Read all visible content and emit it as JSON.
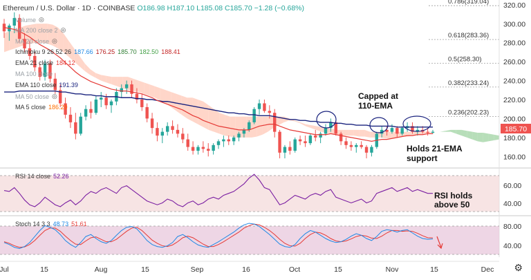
{
  "header": {
    "symbol_title": "Ethereum / U.S. Dollar · 1D · COINBASE",
    "ohlc": "O186.98 H187.10 L185.08 C185.70 −1.28 (−0.68%)"
  },
  "legend": {
    "volume": "Volume",
    "ma200": "MA 200 close 2",
    "ma20": "MA 20 close",
    "ichimoku_label": "Ichimoku 9 26 52 26",
    "ichimoku_values": [
      "187.66",
      "176.25",
      "185.70",
      "182.50",
      "188.41"
    ],
    "ema21_label": "EMA 21 close",
    "ema21_value": "184.12",
    "ma100": "MA 100 close",
    "ema110_label": "EMA 110 close",
    "ema110_value": "191.39",
    "ma50": "MA 50 close",
    "ma5_label": "MA 5 close",
    "ma5_value": "186.20"
  },
  "fib_levels": [
    {
      "label": "0.786(319.04)",
      "value": 319.04
    },
    {
      "label": "0.618(283.36)",
      "value": 283.36
    },
    {
      "label": "0.5(258.30)",
      "value": 258.3
    },
    {
      "label": "0.382(233.24)",
      "value": 233.24
    },
    {
      "label": "0.236(202.23)",
      "value": 202.23
    }
  ],
  "price_axis": {
    "ticks": [
      "320.00",
      "300.00",
      "280.00",
      "260.00",
      "240.00",
      "220.00",
      "200.00",
      "180.00",
      "160.00"
    ],
    "current_price": "185.70"
  },
  "annotations": {
    "capped_line1": "Capped at",
    "capped_line2": "110-EMA",
    "holds_line1": "Holds 21-EMA",
    "holds_line2": "support",
    "rsi_line1": "RSI holds",
    "rsi_line2": "above 50"
  },
  "rsi": {
    "label": "RSI 14 close",
    "value": "52.26",
    "ticks": [
      "60.00",
      "40.00"
    ]
  },
  "stoch": {
    "label": "Stoch 14 3 3",
    "k_value": "48.73",
    "d_value": "51.61",
    "ticks": [
      "80.00",
      "40.00"
    ]
  },
  "time_axis": [
    "Jul",
    "15",
    "Aug",
    "15",
    "Sep",
    "16",
    "Oct",
    "15",
    "Nov",
    "15",
    "Dec"
  ],
  "colors": {
    "up": "#26a69a",
    "down": "#ef5350",
    "ema21": "#e53935",
    "ema110": "#1a237e",
    "cloud_bull": "#a5d6a7",
    "cloud_bear": "#ffccbc",
    "rsi_line": "#7b1fa2",
    "stoch_k": "#1e88e5",
    "stoch_d": "#e53935",
    "price_badge": "#ef5350"
  },
  "chart_data": {
    "type": "candlestick",
    "price_range": [
      150,
      325
    ],
    "candles_approx": [
      [
        300,
        305,
        285,
        292
      ],
      [
        292,
        300,
        282,
        298
      ],
      [
        298,
        312,
        290,
        306
      ],
      [
        306,
        310,
        280,
        284
      ],
      [
        284,
        290,
        270,
        274
      ],
      [
        274,
        282,
        262,
        266
      ],
      [
        266,
        270,
        250,
        254
      ],
      [
        254,
        258,
        240,
        244
      ],
      [
        244,
        262,
        240,
        258
      ],
      [
        258,
        262,
        238,
        242
      ],
      [
        242,
        248,
        226,
        230
      ],
      [
        230,
        236,
        212,
        216
      ],
      [
        216,
        222,
        200,
        204
      ],
      [
        204,
        212,
        190,
        196
      ],
      [
        196,
        206,
        178,
        184
      ],
      [
        184,
        206,
        182,
        202
      ],
      [
        202,
        214,
        198,
        210
      ],
      [
        210,
        218,
        200,
        206
      ],
      [
        206,
        224,
        204,
        220
      ],
      [
        220,
        228,
        212,
        222
      ],
      [
        222,
        226,
        210,
        214
      ],
      [
        214,
        220,
        206,
        218
      ],
      [
        218,
        232,
        214,
        228
      ],
      [
        228,
        236,
        222,
        232
      ],
      [
        232,
        240,
        226,
        236
      ],
      [
        236,
        240,
        222,
        226
      ],
      [
        226,
        232,
        216,
        220
      ],
      [
        220,
        226,
        208,
        212
      ],
      [
        212,
        216,
        196,
        200
      ],
      [
        200,
        206,
        184,
        190
      ],
      [
        190,
        196,
        176,
        182
      ],
      [
        182,
        190,
        174,
        186
      ],
      [
        186,
        196,
        182,
        192
      ],
      [
        192,
        198,
        184,
        188
      ],
      [
        188,
        194,
        180,
        184
      ],
      [
        184,
        190,
        174,
        178
      ],
      [
        178,
        184,
        166,
        170
      ],
      [
        170,
        176,
        162,
        166
      ],
      [
        166,
        172,
        162,
        170
      ],
      [
        170,
        176,
        164,
        168
      ],
      [
        168,
        174,
        160,
        166
      ],
      [
        166,
        174,
        162,
        172
      ],
      [
        172,
        178,
        168,
        176
      ],
      [
        176,
        182,
        170,
        178
      ],
      [
        178,
        182,
        172,
        176
      ],
      [
        176,
        182,
        172,
        180
      ],
      [
        180,
        186,
        176,
        184
      ],
      [
        184,
        190,
        180,
        188
      ],
      [
        188,
        198,
        186,
        196
      ],
      [
        196,
        212,
        194,
        210
      ],
      [
        210,
        220,
        204,
        216
      ],
      [
        216,
        220,
        206,
        208
      ],
      [
        208,
        214,
        200,
        206
      ],
      [
        206,
        210,
        180,
        186
      ],
      [
        186,
        188,
        158,
        164
      ],
      [
        164,
        172,
        158,
        170
      ],
      [
        170,
        176,
        162,
        166
      ],
      [
        166,
        180,
        164,
        178
      ],
      [
        178,
        182,
        172,
        176
      ],
      [
        176,
        182,
        170,
        174
      ],
      [
        174,
        184,
        172,
        182
      ],
      [
        182,
        188,
        176,
        180
      ],
      [
        180,
        186,
        174,
        184
      ],
      [
        184,
        194,
        182,
        190
      ],
      [
        190,
        200,
        186,
        196
      ],
      [
        196,
        198,
        182,
        184
      ],
      [
        184,
        186,
        172,
        176
      ],
      [
        176,
        180,
        168,
        172
      ],
      [
        172,
        176,
        166,
        170
      ],
      [
        170,
        174,
        164,
        172
      ],
      [
        172,
        176,
        168,
        170
      ],
      [
        170,
        172,
        158,
        164
      ],
      [
        164,
        172,
        160,
        170
      ],
      [
        170,
        186,
        168,
        184
      ],
      [
        184,
        192,
        180,
        188
      ],
      [
        188,
        192,
        182,
        186
      ],
      [
        186,
        194,
        184,
        190
      ],
      [
        190,
        192,
        180,
        184
      ],
      [
        184,
        192,
        182,
        190
      ],
      [
        190,
        196,
        186,
        192
      ],
      [
        192,
        196,
        184,
        186
      ],
      [
        186,
        192,
        182,
        188
      ],
      [
        188,
        192,
        184,
        186
      ],
      [
        186,
        190,
        182,
        185
      ],
      [
        185,
        188,
        184,
        186
      ]
    ],
    "ema21": [
      296,
      295,
      294,
      292,
      289,
      286,
      282,
      278,
      275,
      272,
      268,
      264,
      259,
      254,
      249,
      245,
      242,
      239,
      237,
      235,
      233,
      231,
      230,
      229,
      229,
      228,
      227,
      226,
      224,
      222,
      219,
      217,
      215,
      213,
      211,
      209,
      206,
      203,
      201,
      198,
      196,
      194,
      192,
      191,
      190,
      189,
      188,
      188,
      188,
      190,
      192,
      193,
      194,
      194,
      192,
      190,
      188,
      187,
      186,
      185,
      184,
      183,
      183,
      183,
      184,
      183,
      182,
      181,
      180,
      179,
      178,
      177,
      176,
      177,
      178,
      178,
      179,
      180,
      181,
      182,
      182,
      183,
      183,
      184,
      184
    ],
    "ema110": [
      228,
      228,
      228,
      229,
      229,
      229,
      229,
      229,
      229,
      229,
      229,
      228,
      228,
      227,
      226,
      226,
      225,
      225,
      224,
      224,
      223,
      223,
      223,
      222,
      222,
      222,
      221,
      221,
      220,
      220,
      219,
      218,
      218,
      217,
      216,
      215,
      214,
      213,
      212,
      211,
      210,
      209,
      208,
      207,
      206,
      206,
      205,
      205,
      204,
      204,
      203,
      203,
      203,
      202,
      201,
      200,
      199,
      199,
      198,
      198,
      197,
      197,
      196,
      196,
      196,
      195,
      195,
      194,
      194,
      193,
      193,
      193,
      192,
      192,
      192,
      192,
      192,
      191,
      191,
      191,
      191,
      191,
      191,
      191,
      191
    ],
    "cloud_a": [
      270,
      272,
      274,
      276,
      278,
      279,
      280,
      280,
      279,
      277,
      274,
      270,
      265,
      260,
      255,
      250,
      246,
      243,
      240,
      238,
      236,
      234,
      232,
      230,
      229,
      228,
      226,
      224,
      222,
      219,
      216,
      212,
      208,
      204,
      200,
      197,
      194,
      191,
      188,
      186,
      184,
      182,
      181,
      180,
      180,
      180,
      180,
      181,
      183,
      186,
      190,
      193,
      196,
      198,
      197,
      195,
      192,
      190,
      188,
      186,
      185,
      184,
      183,
      182,
      182,
      182,
      181,
      181,
      180,
      180,
      180,
      179,
      179,
      180,
      181,
      181,
      182,
      183,
      184,
      185,
      186,
      186,
      187,
      188,
      188,
      188,
      187,
      186,
      185,
      185,
      184,
      183,
      182
    ],
    "cloud_b": [
      290,
      292,
      294,
      296,
      298,
      299,
      300,
      300,
      300,
      299,
      296,
      290,
      282,
      274,
      266,
      258,
      252,
      248,
      246,
      245,
      244,
      244,
      244,
      244,
      242,
      240,
      238,
      236,
      234,
      232,
      230,
      228,
      226,
      224,
      222,
      222,
      220,
      218,
      214,
      210,
      206,
      204,
      202,
      202,
      202,
      202,
      202,
      202,
      202,
      202,
      202,
      202,
      202,
      200,
      198,
      196,
      194,
      193,
      192,
      191,
      190,
      189,
      188,
      188,
      188,
      188,
      188,
      188,
      186,
      186,
      186,
      186,
      186,
      186,
      186,
      186,
      186,
      186,
      186,
      186,
      186,
      186,
      186,
      186,
      184,
      182,
      180,
      178,
      176,
      175,
      176,
      177,
      178
    ],
    "rsi_series": [
      55,
      54,
      58,
      52,
      45,
      40,
      38,
      42,
      48,
      44,
      40,
      38,
      42,
      45,
      40,
      44,
      50,
      54,
      52,
      56,
      58,
      55,
      52,
      58,
      60,
      56,
      52,
      48,
      44,
      42,
      40,
      42,
      46,
      44,
      40,
      38,
      42,
      44,
      40,
      42,
      46,
      48,
      46,
      50,
      52,
      54,
      58,
      62,
      68,
      72,
      66,
      58,
      56,
      48,
      40,
      42,
      46,
      50,
      48,
      46,
      50,
      52,
      50,
      54,
      56,
      48,
      46,
      44,
      42,
      44,
      46,
      42,
      44,
      52,
      54,
      56,
      58,
      54,
      56,
      58,
      54,
      56,
      54,
      52,
      52
    ],
    "stoch_k": [
      40,
      35,
      28,
      25,
      30,
      40,
      55,
      70,
      82,
      78,
      72,
      60,
      45,
      35,
      28,
      40,
      55,
      60,
      50,
      42,
      38,
      45,
      58,
      70,
      78,
      80,
      74,
      60,
      45,
      35,
      30,
      28,
      32,
      40,
      55,
      60,
      52,
      42,
      34,
      30,
      28,
      35,
      42,
      50,
      58,
      66,
      76,
      84,
      88,
      86,
      80,
      70,
      60,
      48,
      36,
      30,
      28,
      35,
      50,
      62,
      70,
      66,
      58,
      50,
      44,
      40,
      42,
      48,
      56,
      62,
      58,
      50,
      45,
      55,
      68,
      72,
      70,
      66,
      70,
      72,
      64,
      56,
      50,
      48,
      49
    ],
    "stoch_d": [
      42,
      38,
      32,
      28,
      29,
      35,
      45,
      58,
      70,
      76,
      76,
      68,
      56,
      45,
      36,
      35,
      44,
      52,
      54,
      48,
      42,
      42,
      48,
      58,
      68,
      76,
      78,
      70,
      58,
      46,
      38,
      32,
      30,
      34,
      42,
      52,
      56,
      52,
      44,
      36,
      30,
      30,
      35,
      42,
      50,
      58,
      66,
      76,
      82,
      86,
      84,
      78,
      70,
      60,
      48,
      38,
      32,
      31,
      38,
      50,
      60,
      66,
      64,
      58,
      50,
      44,
      42,
      44,
      49,
      55,
      58,
      56,
      51,
      50,
      56,
      64,
      70,
      70,
      68,
      69,
      68,
      63,
      57,
      52,
      51.61
    ]
  }
}
